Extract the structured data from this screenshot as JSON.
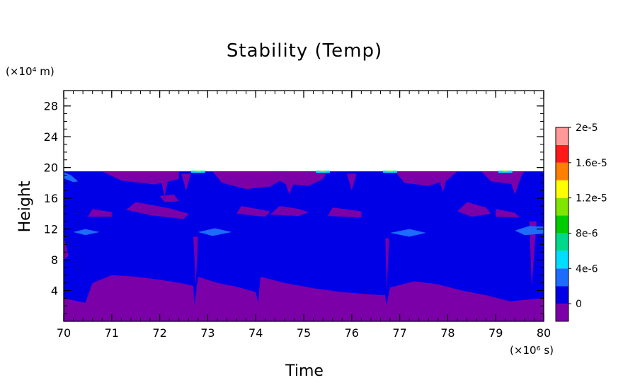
{
  "chart_data": {
    "type": "heatmap",
    "title": "Stability (Temp)",
    "xlabel": "Time",
    "ylabel": "Height",
    "x_unit": "(×10⁶ s)",
    "y_unit": "(×10⁴ m)",
    "xlim": [
      70,
      80
    ],
    "ylim": [
      0,
      30
    ],
    "x_ticks": [
      "70",
      "71",
      "72",
      "73",
      "74",
      "75",
      "76",
      "77",
      "78",
      "79",
      "80"
    ],
    "y_ticks": [
      "4",
      "8",
      "12",
      "16",
      "20",
      "24",
      "28"
    ],
    "x_tick_values": [
      70,
      71,
      72,
      73,
      74,
      75,
      76,
      77,
      78,
      79,
      80
    ],
    "y_tick_values": [
      4,
      8,
      12,
      16,
      20,
      24,
      28
    ],
    "data_top": 19.5,
    "colorbar": {
      "levels": [
        "0",
        "4e-6",
        "8e-6",
        "1.2e-5",
        "1.6e-5",
        "2e-5"
      ],
      "colors": [
        "#7B00A8",
        "#0000E6",
        "#1E6BFF",
        "#00DDFF",
        "#00D98A",
        "#00CC00",
        "#80E600",
        "#FFFF00",
        "#FF8000",
        "#FF1A1A",
        "#FF9999"
      ]
    },
    "regions": {
      "purple_bottom_boundary": [
        [
          70,
          3.0
        ],
        [
          70.3,
          2.6
        ],
        [
          70.45,
          2.4
        ],
        [
          70.6,
          5.0
        ],
        [
          71.0,
          6.0
        ],
        [
          71.5,
          5.8
        ],
        [
          72.0,
          5.4
        ],
        [
          72.5,
          4.9
        ],
        [
          72.7,
          4.6
        ],
        [
          72.72,
          2.0
        ],
        [
          72.8,
          5.8
        ],
        [
          73.2,
          5.0
        ],
        [
          73.6,
          4.5
        ],
        [
          74.0,
          3.8
        ],
        [
          74.05,
          2.4
        ],
        [
          74.1,
          5.8
        ],
        [
          74.6,
          5.0
        ],
        [
          75.2,
          4.3
        ],
        [
          75.8,
          3.8
        ],
        [
          76.4,
          3.5
        ],
        [
          76.7,
          3.4
        ],
        [
          76.72,
          2.0
        ],
        [
          76.8,
          4.4
        ],
        [
          77.3,
          5.2
        ],
        [
          77.8,
          4.8
        ],
        [
          78.3,
          4.0
        ],
        [
          78.8,
          3.4
        ],
        [
          79.3,
          2.6
        ],
        [
          79.8,
          2.9
        ],
        [
          80,
          3.0
        ]
      ],
      "purple_patches": [
        [
          [
            70.8,
            19.5
          ],
          [
            71.2,
            18.3
          ],
          [
            71.9,
            17.8
          ],
          [
            72.4,
            18.5
          ],
          [
            72.4,
            19.5
          ]
        ],
        [
          [
            73.1,
            19.5
          ],
          [
            73.3,
            18.0
          ],
          [
            73.8,
            17.2
          ],
          [
            74.3,
            17.5
          ],
          [
            74.7,
            19.0
          ],
          [
            74.8,
            19.5
          ]
        ],
        [
          [
            74.2,
            19.5
          ],
          [
            74.6,
            17.9
          ],
          [
            75.1,
            17.6
          ],
          [
            75.4,
            18.5
          ],
          [
            75.5,
            19.5
          ]
        ],
        [
          [
            76.9,
            19.5
          ],
          [
            77.1,
            18.0
          ],
          [
            77.6,
            17.6
          ],
          [
            78.0,
            18.4
          ],
          [
            78.2,
            19.5
          ]
        ],
        [
          [
            78.7,
            19.5
          ],
          [
            78.9,
            18.2
          ],
          [
            79.4,
            17.8
          ],
          [
            79.6,
            19.5
          ]
        ],
        [
          [
            71.5,
            15.5
          ],
          [
            72.2,
            14.7
          ],
          [
            72.6,
            14.0
          ],
          [
            72.5,
            13.3
          ],
          [
            71.8,
            13.8
          ],
          [
            71.3,
            14.5
          ]
        ],
        [
          [
            70.6,
            14.6
          ],
          [
            71.0,
            14.2
          ],
          [
            71.0,
            13.6
          ],
          [
            70.5,
            13.6
          ]
        ],
        [
          [
            74.5,
            15.0
          ],
          [
            74.9,
            14.6
          ],
          [
            75.1,
            14.2
          ],
          [
            74.9,
            13.7
          ],
          [
            74.3,
            13.9
          ]
        ],
        [
          [
            75.6,
            14.8
          ],
          [
            76.2,
            14.3
          ],
          [
            76.2,
            13.5
          ],
          [
            75.5,
            13.7
          ]
        ],
        [
          [
            73.7,
            15.0
          ],
          [
            74.3,
            14.3
          ],
          [
            74.2,
            13.6
          ],
          [
            73.6,
            14.0
          ]
        ],
        [
          [
            78.4,
            15.5
          ],
          [
            78.8,
            14.8
          ],
          [
            78.9,
            14.0
          ],
          [
            78.5,
            13.6
          ],
          [
            78.2,
            14.3
          ]
        ],
        [
          [
            79.0,
            14.6
          ],
          [
            79.4,
            14.1
          ],
          [
            79.5,
            13.5
          ],
          [
            79.0,
            13.6
          ]
        ],
        [
          [
            72.0,
            16.3
          ],
          [
            72.3,
            16.5
          ],
          [
            72.4,
            15.6
          ],
          [
            72.1,
            15.5
          ]
        ]
      ],
      "purple_streaks": [
        [
          [
            72.0,
            19.2
          ],
          [
            72.1,
            16.2
          ],
          [
            72.2,
            19.2
          ]
        ],
        [
          [
            72.45,
            19.2
          ],
          [
            72.55,
            17.0
          ],
          [
            72.65,
            19.2
          ]
        ],
        [
          [
            74.55,
            19.2
          ],
          [
            74.7,
            16.5
          ],
          [
            74.85,
            19.2
          ]
        ],
        [
          [
            75.9,
            19.2
          ],
          [
            76.0,
            17.0
          ],
          [
            76.1,
            19.2
          ]
        ],
        [
          [
            77.8,
            19.0
          ],
          [
            77.9,
            16.8
          ],
          [
            78.0,
            19.0
          ]
        ],
        [
          [
            79.25,
            19.2
          ],
          [
            79.4,
            16.5
          ],
          [
            79.55,
            19.2
          ]
        ],
        [
          [
            79.7,
            13.0
          ],
          [
            79.75,
            4.5
          ],
          [
            79.85,
            13.0
          ]
        ],
        [
          [
            70.0,
            11.0
          ],
          [
            70.1,
            8.5
          ],
          [
            70.0,
            8.0
          ]
        ],
        [
          [
            72.7,
            11.0
          ],
          [
            72.75,
            4.8
          ],
          [
            72.8,
            11.0
          ]
        ],
        [
          [
            76.7,
            10.8
          ],
          [
            76.73,
            4.0
          ],
          [
            76.78,
            10.8
          ]
        ]
      ],
      "light_blue_lenses": [
        [
          [
            70.2,
            11.6
          ],
          [
            70.45,
            12.0
          ],
          [
            70.75,
            11.6
          ],
          [
            70.45,
            11.2
          ]
        ],
        [
          [
            72.8,
            11.6
          ],
          [
            73.15,
            12.1
          ],
          [
            73.5,
            11.6
          ],
          [
            73.1,
            11.1
          ]
        ],
        [
          [
            76.8,
            11.5
          ],
          [
            77.2,
            12.0
          ],
          [
            77.55,
            11.5
          ],
          [
            77.2,
            11.0
          ]
        ],
        [
          [
            79.4,
            11.8
          ],
          [
            79.7,
            12.4
          ],
          [
            80.0,
            12.3
          ],
          [
            80.0,
            11.4
          ],
          [
            79.6,
            11.2
          ]
        ],
        [
          [
            70.0,
            19.4
          ],
          [
            70.15,
            19.0
          ],
          [
            70.3,
            18.2
          ],
          [
            70.2,
            18.1
          ],
          [
            70.0,
            18.6
          ]
        ]
      ],
      "top_edge_highlights": [
        [
          72.8,
          19.5
        ],
        [
          76.8,
          19.5
        ],
        [
          79.2,
          19.5
        ],
        [
          75.4,
          19.5
        ]
      ]
    }
  }
}
